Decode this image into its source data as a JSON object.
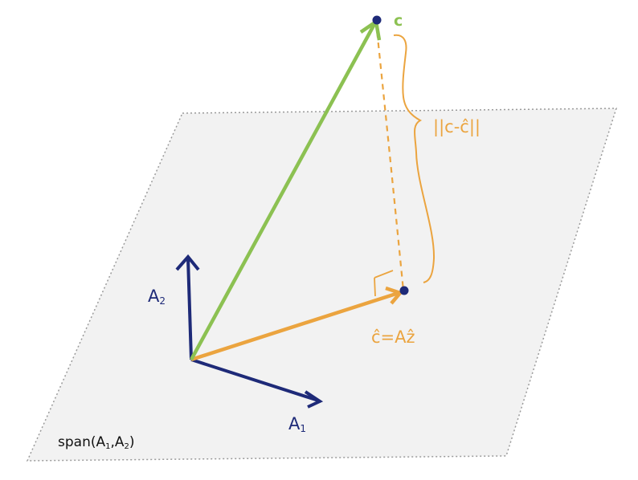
{
  "labels": {
    "c": "c",
    "residual_norm": "||c-ĉ||",
    "c_hat_eq": "ĉ=Aẑ",
    "a1_base": "A",
    "a1_sub": "1",
    "a2_base": "A",
    "a2_sub": "2",
    "span_prefix": "span(A",
    "span_sub1": "1",
    "span_mid": ",A",
    "span_sub2": "2",
    "span_suffix": ")"
  },
  "colors": {
    "plane_fill": "#f2f2f2",
    "plane_border": "#9a9a9a",
    "basis": "#1e2a78",
    "target": "#8cc152",
    "projection": "#eba43f",
    "point": "#1e2a78",
    "span_text": "#111111"
  }
}
